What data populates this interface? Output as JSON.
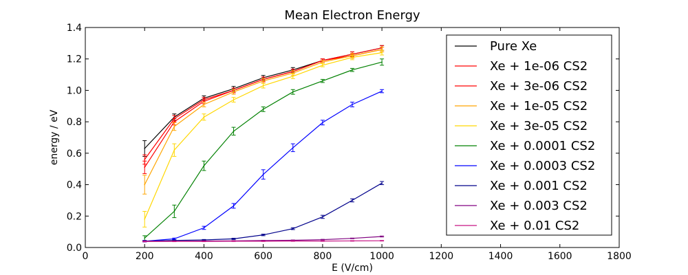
{
  "chart_data": {
    "type": "line",
    "title": "Mean Electron Energy",
    "xlabel": "E (V/cm)",
    "ylabel": "energy / eV",
    "xlim": [
      0,
      1800
    ],
    "ylim": [
      0.0,
      1.4
    ],
    "xticks": [
      "0",
      "200",
      "400",
      "600",
      "800",
      "1000",
      "1200",
      "1400",
      "1600",
      "1800"
    ],
    "yticks": [
      "0.0",
      "0.2",
      "0.4",
      "0.6",
      "0.8",
      "1.0",
      "1.2",
      "1.4"
    ],
    "grid": false,
    "legend_position": "top-right",
    "x": [
      200,
      300,
      400,
      500,
      600,
      700,
      800,
      900,
      1000
    ],
    "series": [
      {
        "name": "Pure Xe",
        "color": "#000000",
        "values": [
          0.63,
          0.83,
          0.95,
          1.01,
          1.08,
          1.13,
          1.19,
          1.23,
          1.27
        ],
        "errors": [
          0.05,
          0.02,
          0.015,
          0.015,
          0.015,
          0.015,
          0.01,
          0.015,
          0.015
        ]
      },
      {
        "name": "Xe + 1e-06 CS2",
        "color": "#ff0000",
        "values": [
          0.56,
          0.82,
          0.94,
          1.0,
          1.07,
          1.12,
          1.19,
          1.23,
          1.27
        ],
        "errors": [
          0.03,
          0.02,
          0.015,
          0.015,
          0.015,
          0.015,
          0.01,
          0.015,
          0.015
        ]
      },
      {
        "name": "Xe + 3e-06 CS2",
        "color": "#ff0000",
        "values": [
          0.51,
          0.8,
          0.93,
          1.0,
          1.07,
          1.12,
          1.19,
          1.22,
          1.26
        ],
        "errors": [
          0.04,
          0.02,
          0.015,
          0.015,
          0.015,
          0.015,
          0.01,
          0.015,
          0.015
        ]
      },
      {
        "name": "Xe + 1e-05 CS2",
        "color": "#ffa500",
        "values": [
          0.4,
          0.77,
          0.91,
          0.99,
          1.06,
          1.11,
          1.18,
          1.22,
          1.26
        ],
        "errors": [
          0.06,
          0.025,
          0.015,
          0.015,
          0.015,
          0.015,
          0.01,
          0.015,
          0.015
        ]
      },
      {
        "name": "Xe + 3e-05 CS2",
        "color": "#ffd700",
        "values": [
          0.18,
          0.62,
          0.83,
          0.94,
          1.03,
          1.09,
          1.16,
          1.21,
          1.24
        ],
        "errors": [
          0.05,
          0.04,
          0.02,
          0.015,
          0.015,
          0.015,
          0.01,
          0.015,
          0.015
        ]
      },
      {
        "name": "Xe + 0.0001 CS2",
        "color": "#008000",
        "values": [
          0.06,
          0.23,
          0.52,
          0.74,
          0.88,
          0.99,
          1.06,
          1.13,
          1.18
        ],
        "errors": [
          0.015,
          0.04,
          0.03,
          0.025,
          0.015,
          0.015,
          0.01,
          0.01,
          0.02
        ]
      },
      {
        "name": "Xe + 0.0003 CS2",
        "color": "#0000ff",
        "values": [
          0.04,
          0.055,
          0.125,
          0.265,
          0.465,
          0.635,
          0.795,
          0.91,
          0.995
        ],
        "errors": [
          0.005,
          0.005,
          0.01,
          0.015,
          0.03,
          0.025,
          0.015,
          0.015,
          0.01
        ]
      },
      {
        "name": "Xe + 0.001 CS2",
        "color": "#00008b",
        "values": [
          0.04,
          0.045,
          0.048,
          0.055,
          0.08,
          0.12,
          0.195,
          0.3,
          0.41
        ],
        "errors": [
          0.003,
          0.003,
          0.003,
          0.004,
          0.005,
          0.006,
          0.01,
          0.01,
          0.01
        ]
      },
      {
        "name": "Xe + 0.003 CS2",
        "color": "#800080",
        "values": [
          0.04,
          0.04,
          0.041,
          0.042,
          0.044,
          0.046,
          0.05,
          0.058,
          0.07
        ],
        "errors": [
          0.002,
          0.002,
          0.002,
          0.002,
          0.002,
          0.002,
          0.002,
          0.002,
          0.003
        ]
      },
      {
        "name": "Xe + 0.01 CS2",
        "color": "#c71585",
        "values": [
          0.038,
          0.039,
          0.039,
          0.04,
          0.04,
          0.041,
          0.041,
          0.042,
          0.043
        ],
        "errors": [
          0.002,
          0.002,
          0.002,
          0.002,
          0.002,
          0.002,
          0.002,
          0.002,
          0.002
        ]
      }
    ]
  }
}
